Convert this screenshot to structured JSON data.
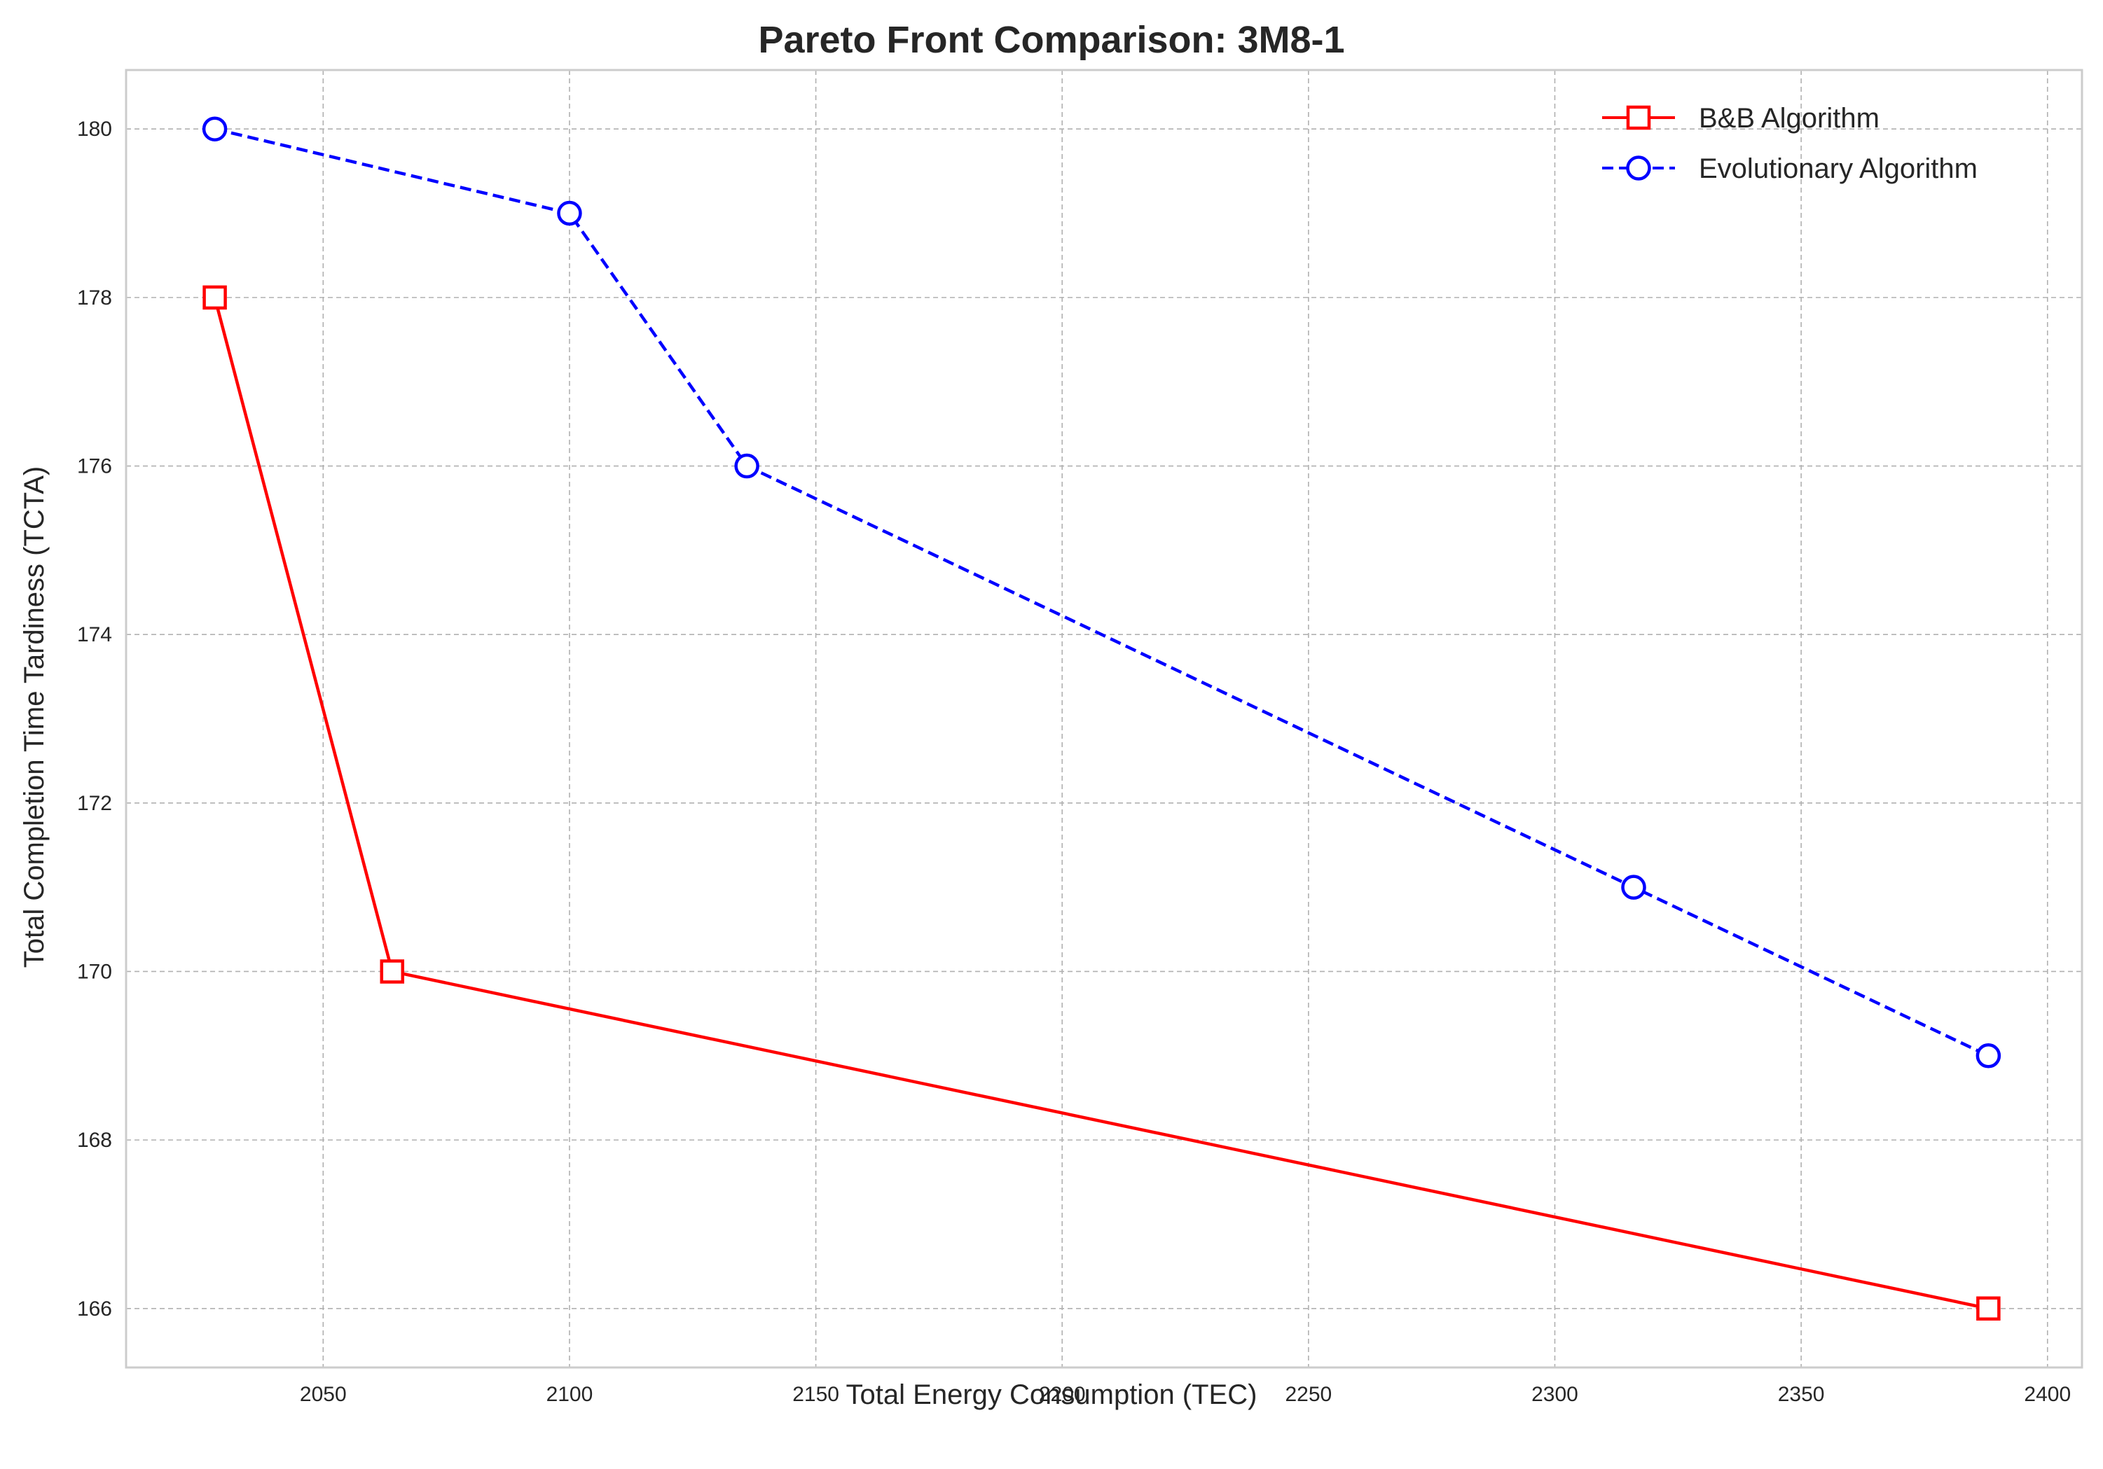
{
  "chart_data": {
    "type": "line",
    "title": "Pareto Front Comparison: 3M8-1",
    "xlabel": "Total Energy Consumption (TEC)",
    "ylabel": "Total Completion Time Tardiness (TCTA)",
    "xlim": [
      2010,
      2407
    ],
    "ylim": [
      165.3,
      180.7
    ],
    "xticks": [
      2050,
      2100,
      2150,
      2200,
      2250,
      2300,
      2350,
      2400
    ],
    "yticks": [
      166,
      168,
      170,
      172,
      174,
      176,
      178,
      180
    ],
    "grid": true,
    "legend_position": "top-right",
    "series": [
      {
        "name": "B&B Algorithm",
        "color": "#ff0000",
        "marker": "square",
        "line_style": "solid",
        "x": [
          2028,
          2064,
          2388
        ],
        "y": [
          178,
          170,
          166
        ]
      },
      {
        "name": "Evolutionary Algorithm",
        "color": "#0000ff",
        "marker": "circle",
        "line_style": "dashed",
        "x": [
          2028,
          2100,
          2136,
          2316,
          2388
        ],
        "y": [
          180,
          179,
          176,
          171,
          169
        ]
      }
    ]
  }
}
